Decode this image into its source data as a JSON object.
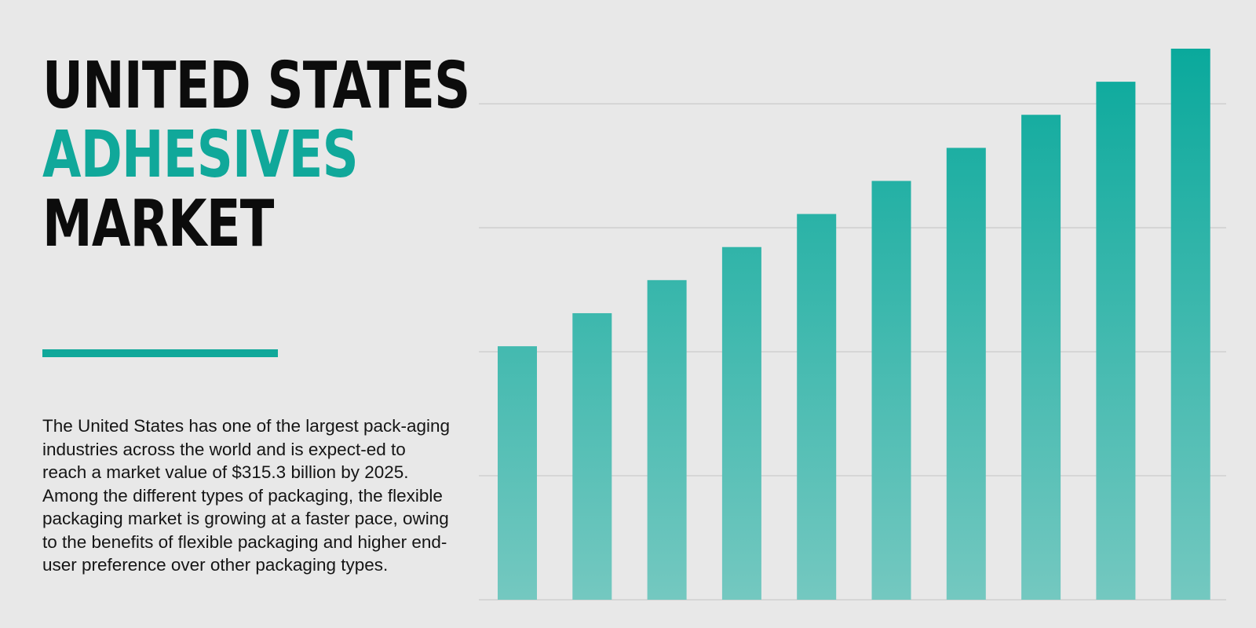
{
  "title": {
    "line1": "UNITED STATES",
    "line2": "ADHESIVES",
    "line3": "MARKET"
  },
  "description": "The United States has one of the largest pack-aging industries across the world and is expect-ed to reach a market value of $315.3 billion by 2025. Among the different types of packaging, the flexible packaging market is growing at a faster pace, owing to the benefits of flexible packaging and higher end-user preference over other packaging types.",
  "colors": {
    "accent": "#10a89a",
    "bar_top": "#0aa99c",
    "bar_bottom": "#74c8c0",
    "gridline": "#cfcfcf",
    "background": "#e8e8e8"
  },
  "chart_data": {
    "type": "bar",
    "categories": [
      "",
      "",
      "",
      "",
      "",
      "",
      "",
      "",
      "",
      ""
    ],
    "values": [
      46,
      52,
      58,
      64,
      70,
      76,
      82,
      88,
      94,
      100
    ],
    "ylim": [
      0,
      100
    ],
    "gridlines": [
      0,
      22.5,
      45,
      67.5,
      90
    ],
    "grid": true,
    "legend": "none",
    "title": "",
    "xlabel": "",
    "ylabel": ""
  }
}
